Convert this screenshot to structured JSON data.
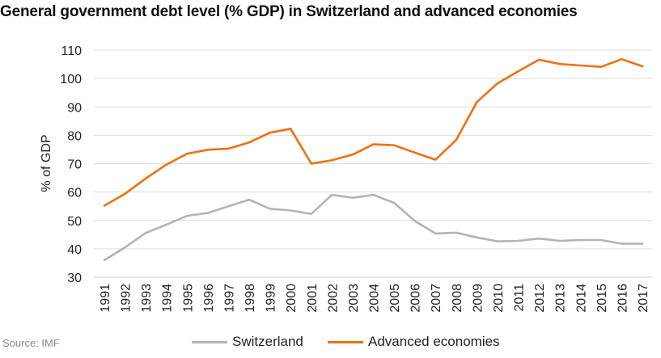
{
  "title": "General government debt level (% GDP) in Switzerland and advanced economies",
  "source": "Source: IMF",
  "colors": {
    "switzerland": "#b4b4b4",
    "advanced": "#f07010",
    "grid": "#dddddd"
  },
  "chart_data": {
    "type": "line",
    "title": "General government debt level (% GDP) in Switzerland and advanced economies",
    "xlabel": "",
    "ylabel": "% of GDP",
    "ylim": [
      30,
      110
    ],
    "yticks": [
      30,
      40,
      50,
      60,
      70,
      80,
      90,
      100,
      110
    ],
    "grid": "horizontal",
    "legend_position": "bottom",
    "x": [
      "1991",
      "1992",
      "1993",
      "1994",
      "1995",
      "1996",
      "1997",
      "1998",
      "1999",
      "2000",
      "2001",
      "2002",
      "2003",
      "2004",
      "2005",
      "2006",
      "2007",
      "2008",
      "2009",
      "2010",
      "2011",
      "2012",
      "2013",
      "2014",
      "2015",
      "2016",
      "2017"
    ],
    "series": [
      {
        "name": "Switzerland",
        "color": "#b4b4b4",
        "values": [
          36.0,
          40.5,
          45.6,
          48.5,
          51.6,
          52.6,
          55.0,
          57.3,
          54.1,
          53.5,
          52.3,
          59.0,
          58.0,
          59.0,
          56.2,
          49.8,
          45.4,
          45.7,
          44.0,
          42.6,
          42.8,
          43.6,
          42.8,
          43.1,
          43.1,
          41.8,
          41.8
        ]
      },
      {
        "name": "Advanced economies",
        "color": "#f07010",
        "values": [
          55.2,
          59.4,
          64.8,
          69.7,
          73.5,
          74.9,
          75.3,
          77.5,
          80.9,
          82.3,
          70.0,
          71.2,
          73.2,
          76.8,
          76.5,
          73.9,
          71.4,
          78.3,
          91.7,
          98.3,
          102.5,
          106.6,
          105.1,
          104.6,
          104.1,
          106.8,
          104.3
        ]
      }
    ]
  }
}
